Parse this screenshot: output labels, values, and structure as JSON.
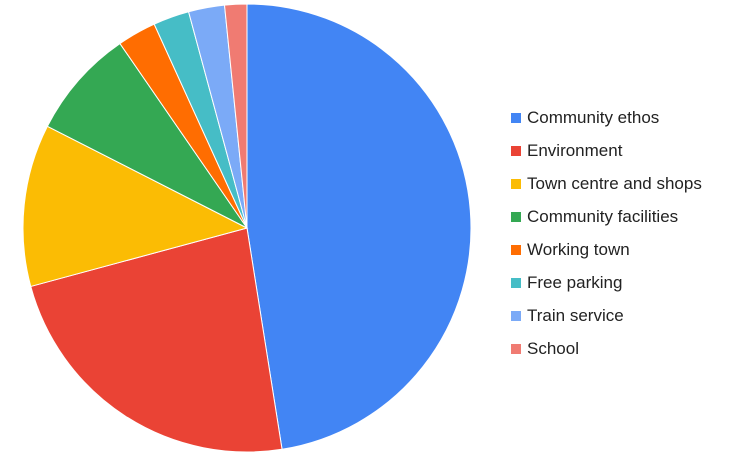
{
  "chart_data": {
    "type": "pie",
    "title": "",
    "start_angle": "12 o'clock, clockwise",
    "legend_position": "right",
    "slices": [
      {
        "label": "Community ethos",
        "value": 47.5,
        "color": "#4285f4"
      },
      {
        "label": "Environment",
        "value": 23.3,
        "color": "#ea4335"
      },
      {
        "label": "Town centre and shops",
        "value": 11.7,
        "color": "#fbbc04"
      },
      {
        "label": "Community facilities",
        "value": 7.9,
        "color": "#34a853"
      },
      {
        "label": "Working town",
        "value": 2.8,
        "color": "#ff6d01"
      },
      {
        "label": "Free parking",
        "value": 2.6,
        "color": "#46bdc6"
      },
      {
        "label": "Train service",
        "value": 2.6,
        "color": "#7baaf7"
      },
      {
        "label": "School",
        "value": 1.6,
        "color": "#f07b72"
      }
    ]
  }
}
